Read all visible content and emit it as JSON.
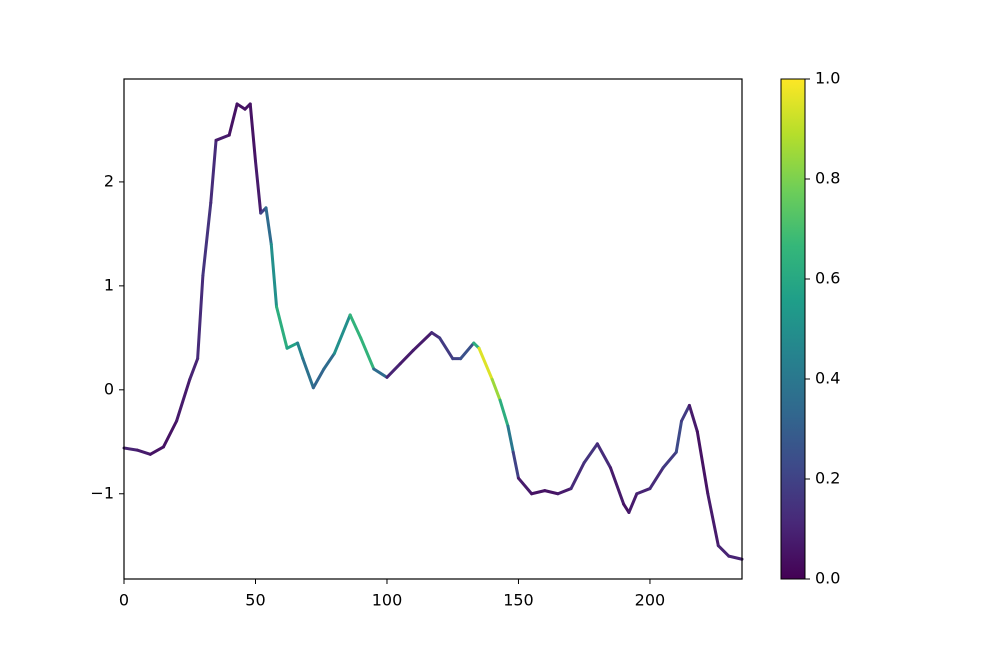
{
  "chart_data": {
    "type": "colored-line",
    "colormap": "viridis",
    "x": [
      0,
      5,
      10,
      15,
      20,
      25,
      28,
      30,
      33,
      35,
      40,
      43,
      46,
      48,
      50,
      52,
      54,
      56,
      58,
      62,
      66,
      68,
      72,
      76,
      80,
      86,
      90,
      95,
      100,
      105,
      110,
      117,
      120,
      125,
      128,
      133,
      135,
      140,
      143,
      146,
      148,
      150,
      155,
      160,
      165,
      170,
      175,
      180,
      185,
      190,
      192,
      195,
      200,
      205,
      210,
      212,
      215,
      218,
      222,
      226,
      230,
      235
    ],
    "values": [
      -0.56,
      -0.58,
      -0.62,
      -0.55,
      -0.3,
      0.1,
      0.3,
      1.1,
      1.8,
      2.4,
      2.45,
      2.75,
      2.7,
      2.75,
      2.2,
      1.7,
      1.75,
      1.4,
      0.8,
      0.4,
      0.45,
      0.3,
      0.02,
      0.2,
      0.35,
      0.72,
      0.5,
      0.2,
      0.12,
      0.25,
      0.38,
      0.55,
      0.5,
      0.3,
      0.3,
      0.45,
      0.4,
      0.1,
      -0.1,
      -0.35,
      -0.6,
      -0.85,
      -1.0,
      -0.97,
      -1.0,
      -0.95,
      -0.7,
      -0.52,
      -0.75,
      -1.1,
      -1.18,
      -1.0,
      -0.95,
      -0.75,
      -0.6,
      -0.3,
      -0.15,
      -0.4,
      -1.0,
      -1.5,
      -1.6,
      -1.63
    ],
    "color_values": [
      0.1,
      0.1,
      0.05,
      0.05,
      0.05,
      0.1,
      0.1,
      0.15,
      0.15,
      0.1,
      0.05,
      0.05,
      0.05,
      0.05,
      0.05,
      0.1,
      0.3,
      0.4,
      0.6,
      0.65,
      0.5,
      0.4,
      0.35,
      0.3,
      0.4,
      0.6,
      0.7,
      0.6,
      0.1,
      0.1,
      0.05,
      0.1,
      0.15,
      0.2,
      0.2,
      0.3,
      0.95,
      0.95,
      0.75,
      0.5,
      0.3,
      0.1,
      0.05,
      0.05,
      0.05,
      0.1,
      0.15,
      0.15,
      0.1,
      0.05,
      0.05,
      0.1,
      0.1,
      0.15,
      0.2,
      0.25,
      0.1,
      0.05,
      0.05,
      0.1,
      0.1,
      0.1
    ],
    "xlim": [
      0,
      235
    ],
    "ylim": [
      -1.82,
      2.99
    ],
    "xticks": [
      0,
      50,
      100,
      150,
      200
    ],
    "yticks": [
      {
        "value": -1,
        "label": "−1"
      },
      0,
      1,
      2
    ],
    "clim": [
      0,
      1
    ],
    "cticks": [
      {
        "value": 0,
        "label": "0.0"
      },
      {
        "value": 0.2,
        "label": "0.2"
      },
      {
        "value": 0.4,
        "label": "0.4"
      },
      {
        "value": 0.6,
        "label": "0.6"
      },
      {
        "value": 0.8,
        "label": "0.8"
      },
      {
        "value": 1,
        "label": "1.0"
      }
    ]
  }
}
